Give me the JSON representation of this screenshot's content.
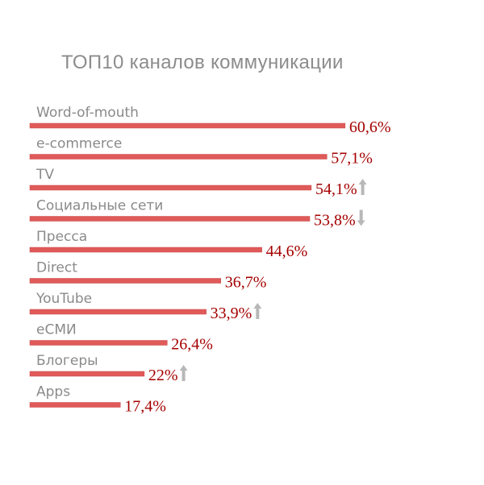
{
  "chart_data": {
    "type": "bar",
    "orientation": "horizontal",
    "title": "ТОП10 каналов коммуникации",
    "xlabel": "",
    "ylabel": "",
    "grid": false,
    "categories": [
      "Word-of-mouth",
      "e-commerce",
      "TV",
      "Социальные сети",
      "Пресса",
      "Direct",
      "YouTube",
      "еСМИ",
      "Блогеры",
      "Apps"
    ],
    "values": [
      60.6,
      57.1,
      54.1,
      53.8,
      44.6,
      36.7,
      33.9,
      26.4,
      22,
      17.4
    ],
    "value_labels": [
      "60,6%",
      "57,1%",
      "54,1%",
      "53,8%",
      "44,6%",
      "36,7%",
      "33,9%",
      "26,4%",
      "22%",
      "17,4%"
    ],
    "trend": [
      "",
      "",
      "up",
      "down",
      "",
      "",
      "up",
      "",
      "up",
      ""
    ],
    "colors": {
      "bar": "#e05a5a",
      "value_text": "#a50000",
      "category_text": "#8a8a8a",
      "title": "#8c8c8c",
      "arrow": "#b8b8b8"
    }
  }
}
